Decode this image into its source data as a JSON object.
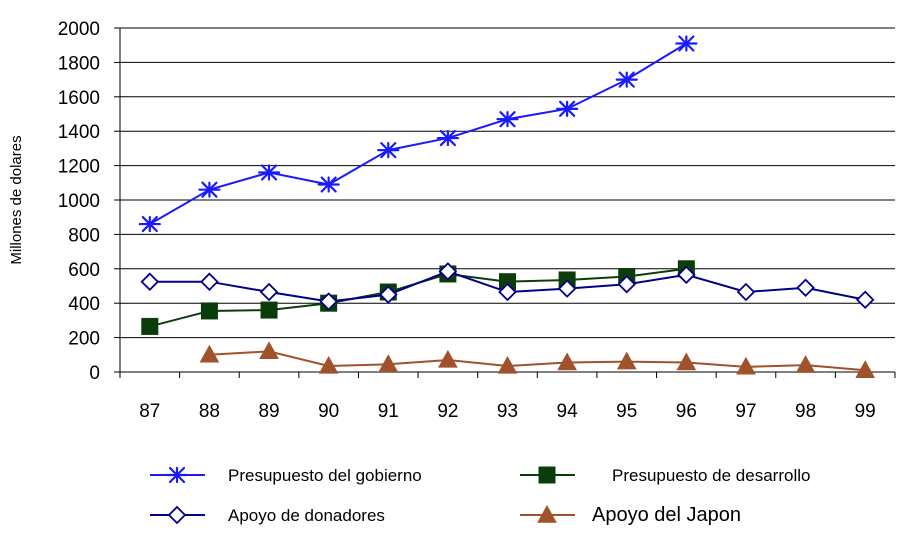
{
  "chart_data": {
    "type": "line",
    "title": "",
    "xlabel": "",
    "ylabel": "Millones de dolares",
    "categories": [
      "87",
      "88",
      "89",
      "90",
      "91",
      "92",
      "93",
      "94",
      "95",
      "96",
      "97",
      "98",
      "99"
    ],
    "yticks": [
      "0",
      "200",
      "400",
      "600",
      "800",
      "1000",
      "1200",
      "1400",
      "1600",
      "1800",
      "2000"
    ],
    "ylim": [
      0,
      2000
    ],
    "grid": "horizontal",
    "legend_position": "bottom",
    "series": [
      {
        "name": "Presupuesto del gobierno",
        "color": "#1a1aff",
        "marker": "asterisk",
        "values": [
          860,
          1060,
          1160,
          1090,
          1290,
          1360,
          1470,
          1530,
          1700,
          1910,
          null,
          null,
          null
        ]
      },
      {
        "name": "Presupuesto de desarrollo",
        "color": "#0b3d0b",
        "marker": "square",
        "values": [
          265,
          355,
          360,
          400,
          465,
          570,
          525,
          535,
          555,
          600,
          null,
          null,
          null
        ]
      },
      {
        "name": "Apoyo  de  donadores",
        "color": "#00008b",
        "marker": "diamond-open",
        "values": [
          525,
          525,
          465,
          410,
          450,
          585,
          465,
          485,
          510,
          565,
          465,
          490,
          420
        ]
      },
      {
        "name": "Apoyo del Japon",
        "color": "#a0522d",
        "marker": "triangle",
        "values": [
          null,
          100,
          120,
          35,
          45,
          70,
          35,
          55,
          60,
          55,
          30,
          40,
          10
        ]
      }
    ]
  }
}
